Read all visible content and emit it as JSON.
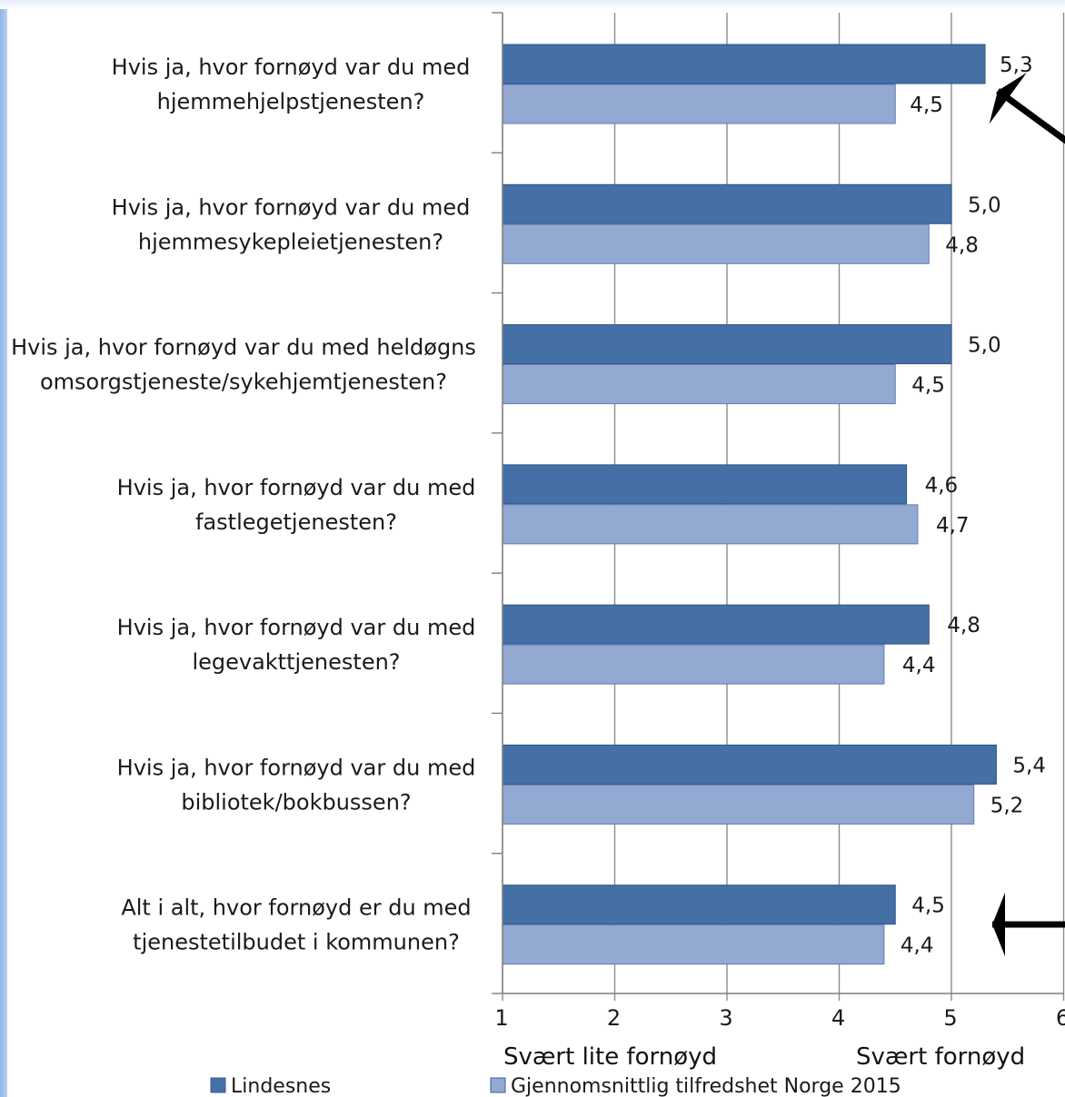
{
  "chart_data": {
    "type": "bar",
    "orientation": "horizontal",
    "categories": [
      [
        "Hvis ja, hvor fornøyd var du med",
        "hjemmehjelpstjenesten?"
      ],
      [
        "Hvis ja, hvor fornøyd var du med",
        "hjemmesykepleietjenesten?"
      ],
      [
        "Hvis ja, hvor fornøyd var du med heldøgns",
        "omsorgstjeneste/sykehjemtjenesten?"
      ],
      [
        "Hvis ja, hvor fornøyd var du med",
        "fastlegetjenesten?"
      ],
      [
        "Hvis ja, hvor fornøyd var du med",
        "legevakttjenesten?"
      ],
      [
        "Hvis ja, hvor fornøyd var du med",
        "bibliotek/bokbussen?"
      ],
      [
        "Alt i alt, hvor fornøyd er du med",
        "tjenestetilbudet i kommunen?"
      ]
    ],
    "series": [
      {
        "name": "Lindesnes",
        "color": "#4470a6",
        "values": [
          5.3,
          5.0,
          5.0,
          4.6,
          4.8,
          5.4,
          4.5
        ],
        "labels": [
          "5,3",
          "5,0",
          "5,0",
          "4,6",
          "4,8",
          "5,4",
          "4,5"
        ]
      },
      {
        "name": "Gjennomsnittlig tilfredshet Norge 2015",
        "color": "#93a9d2",
        "values": [
          4.5,
          4.8,
          4.5,
          4.7,
          4.4,
          5.2,
          4.4
        ],
        "labels": [
          "4,5",
          "4,8",
          "4,5",
          "4,7",
          "4,4",
          "5,2",
          "4,4"
        ]
      }
    ],
    "xlim": [
      1,
      6
    ],
    "xticks": [
      "1",
      "2",
      "3",
      "4",
      "5",
      "6"
    ],
    "scale_low_label": "Svært lite fornøyd",
    "scale_high_label": "Svært fornøyd",
    "grid": true,
    "legend_position": "bottom",
    "annotations": [
      "arrow pointing to first category",
      "arrow pointing to last category"
    ]
  }
}
